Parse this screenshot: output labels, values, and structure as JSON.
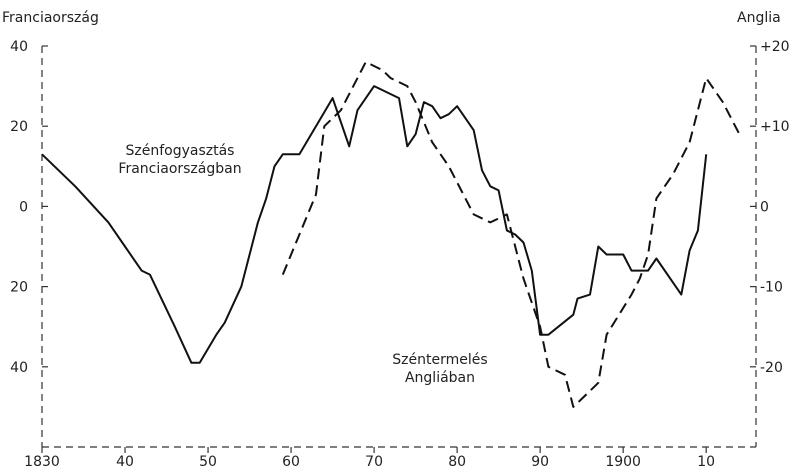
{
  "chart_data": {
    "type": "line",
    "title": "",
    "left_axis_title": "Franciaország",
    "right_axis_title": "Anglia",
    "x_ticks": [
      {
        "value": 1830,
        "label": "1830"
      },
      {
        "value": 1840,
        "label": "40"
      },
      {
        "value": 1850,
        "label": "50"
      },
      {
        "value": 1860,
        "label": "60"
      },
      {
        "value": 1870,
        "label": "70"
      },
      {
        "value": 1880,
        "label": "80"
      },
      {
        "value": 1890,
        "label": "90"
      },
      {
        "value": 1900,
        "label": "1900"
      },
      {
        "value": 1910,
        "label": "10"
      }
    ],
    "left_ticks": [
      {
        "value": 40,
        "label": "40"
      },
      {
        "value": 20,
        "label": "20"
      },
      {
        "value": 0,
        "label": "0"
      },
      {
        "value": -20,
        "label": "20"
      },
      {
        "value": -40,
        "label": "40"
      }
    ],
    "right_ticks": [
      {
        "value": 20,
        "label": "+20"
      },
      {
        "value": 10,
        "label": "+10"
      },
      {
        "value": 0,
        "label": "0"
      },
      {
        "value": -10,
        "label": "-10"
      },
      {
        "value": -20,
        "label": "-20"
      }
    ],
    "xlim": [
      1830,
      1916
    ],
    "left_ylim": [
      -60,
      40
    ],
    "right_ylim": [
      -30,
      20
    ],
    "series": [
      {
        "label": "Szénfogyasztás Franciaországban",
        "axis": "left",
        "style": "solid",
        "points": [
          [
            1830,
            13
          ],
          [
            1834,
            5
          ],
          [
            1838,
            -4
          ],
          [
            1840,
            -10
          ],
          [
            1842,
            -16
          ],
          [
            1843,
            -17
          ],
          [
            1846,
            -30
          ],
          [
            1848,
            -39
          ],
          [
            1849,
            -39
          ],
          [
            1851,
            -32
          ],
          [
            1852,
            -29
          ],
          [
            1854,
            -20
          ],
          [
            1856,
            -4
          ],
          [
            1857,
            2
          ],
          [
            1858,
            10
          ],
          [
            1859,
            13
          ],
          [
            1861,
            13
          ],
          [
            1863,
            20
          ],
          [
            1865,
            27
          ],
          [
            1867,
            15
          ],
          [
            1868,
            24
          ],
          [
            1870,
            30
          ],
          [
            1872,
            28
          ],
          [
            1873,
            27
          ],
          [
            1874,
            15
          ],
          [
            1875,
            18
          ],
          [
            1876,
            26
          ],
          [
            1877,
            25
          ],
          [
            1878,
            22
          ],
          [
            1879,
            23
          ],
          [
            1880,
            25
          ],
          [
            1881,
            22
          ],
          [
            1882,
            19
          ],
          [
            1883,
            9
          ],
          [
            1884,
            5
          ],
          [
            1885,
            4
          ],
          [
            1886,
            -6
          ],
          [
            1887,
            -7
          ],
          [
            1888,
            -9
          ],
          [
            1889,
            -16
          ],
          [
            1890,
            -32
          ],
          [
            1891,
            -32
          ],
          [
            1894,
            -27
          ],
          [
            1894.5,
            -23
          ],
          [
            1896,
            -22
          ],
          [
            1897,
            -10
          ],
          [
            1898,
            -12
          ],
          [
            1900,
            -12
          ],
          [
            1901,
            -16
          ],
          [
            1903,
            -16
          ],
          [
            1904,
            -13
          ],
          [
            1907,
            -22
          ],
          [
            1908,
            -11
          ],
          [
            1909,
            -6
          ],
          [
            1910,
            13
          ]
        ]
      },
      {
        "label": "Széntermelés Angliában",
        "axis": "right",
        "style": "dashed",
        "points": [
          [
            1859,
            -8.5
          ],
          [
            1861,
            -3.5
          ],
          [
            1863,
            1.5
          ],
          [
            1864,
            10
          ],
          [
            1865,
            11
          ],
          [
            1866,
            12
          ],
          [
            1867,
            14
          ],
          [
            1869,
            18
          ],
          [
            1871,
            17
          ],
          [
            1872,
            16
          ],
          [
            1874,
            15
          ],
          [
            1875,
            13
          ],
          [
            1877,
            8
          ],
          [
            1879,
            5
          ],
          [
            1881,
            1
          ],
          [
            1882,
            -1
          ],
          [
            1884,
            -2
          ],
          [
            1886,
            -1
          ],
          [
            1888,
            -9
          ],
          [
            1890,
            -15
          ],
          [
            1891,
            -20
          ],
          [
            1893,
            -21
          ],
          [
            1894,
            -25
          ],
          [
            1895,
            -24
          ],
          [
            1896,
            -23
          ],
          [
            1897,
            -22
          ],
          [
            1898,
            -16
          ],
          [
            1901,
            -11
          ],
          [
            1902,
            -9
          ],
          [
            1903,
            -6
          ],
          [
            1904,
            1
          ],
          [
            1906,
            4
          ],
          [
            1908,
            8
          ],
          [
            1910,
            16
          ],
          [
            1912,
            13
          ],
          [
            1913,
            11
          ],
          [
            1914,
            9
          ]
        ]
      }
    ],
    "annotations": [
      {
        "series": 0,
        "lines": [
          "Szénfogyasztás",
          "Franciaországban"
        ]
      },
      {
        "series": 1,
        "lines": [
          "Széntermelés",
          "Angliában"
        ]
      }
    ]
  }
}
